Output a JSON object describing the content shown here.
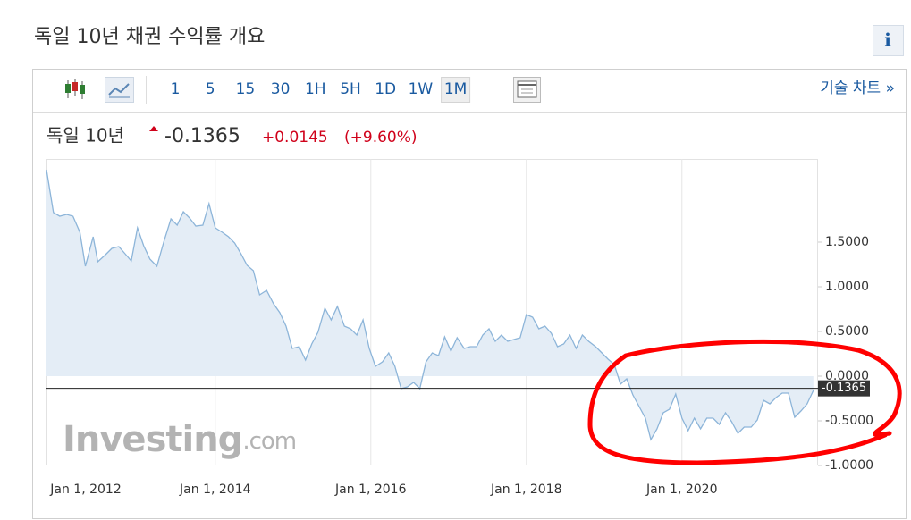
{
  "page": {
    "title": "독일 10년 채권 수익률 개요",
    "info_icon": "i",
    "toolbar": {
      "intervals": [
        "1",
        "5",
        "15",
        "30",
        "1H",
        "5H",
        "1D",
        "1W",
        "1M"
      ],
      "selected": "1M",
      "technical_link": "기술 차트 »"
    },
    "header": {
      "name": "독일 10년",
      "price": "-0.1365",
      "change": "+0.0145",
      "change_pct": "(+9.60%)"
    }
  },
  "chart_data": {
    "type": "area",
    "color": "#8db5d9",
    "fill": "#e4edf6",
    "grid": "x",
    "watermark": [
      "Investing",
      ".com"
    ],
    "last_value": -0.1365,
    "xlim": [
      2011.83,
      2021.75
    ],
    "xticks": [
      {
        "value": 2012,
        "label": "Jan 1, 2012"
      },
      {
        "value": 2014,
        "label": "Jan 1, 2014"
      },
      {
        "value": 2016,
        "label": "Jan 1, 2016"
      },
      {
        "value": 2018,
        "label": "Jan 1, 2018"
      },
      {
        "value": 2020,
        "label": "Jan 1, 2020"
      }
    ],
    "ylim": [
      -1,
      2.43
    ],
    "yticks": [
      {
        "value": -1,
        "label": "-1.0000"
      },
      {
        "value": -0.5,
        "label": "-0.5000"
      },
      {
        "value": 0,
        "label": "0.0000"
      },
      {
        "value": 0.5,
        "label": "0.5000"
      },
      {
        "value": 1,
        "label": "1.0000"
      },
      {
        "value": 1.5,
        "label": "1.5000"
      }
    ],
    "x": [
      2011.83,
      2011.92,
      2012.0,
      2012.09,
      2012.17,
      2012.26,
      2012.33,
      2012.43,
      2012.49,
      2012.59,
      2012.67,
      2012.76,
      2012.84,
      2012.92,
      2013.0,
      2013.08,
      2013.16,
      2013.25,
      2013.34,
      2013.43,
      2013.51,
      2013.59,
      2013.67,
      2013.75,
      2013.84,
      2013.92,
      2014.0,
      2014.09,
      2014.17,
      2014.25,
      2014.33,
      2014.41,
      2014.49,
      2014.57,
      2014.66,
      2014.75,
      2014.83,
      2014.91,
      2014.99,
      2015.08,
      2015.16,
      2015.24,
      2015.32,
      2015.41,
      2015.49,
      2015.57,
      2015.66,
      2015.74,
      2015.82,
      2015.9,
      2015.98,
      2016.06,
      2016.15,
      2016.23,
      2016.31,
      2016.39,
      2016.47,
      2016.55,
      2016.63,
      2016.71,
      2016.79,
      2016.87,
      2016.95,
      2017.03,
      2017.11,
      2017.2,
      2017.28,
      2017.36,
      2017.44,
      2017.52,
      2017.6,
      2017.68,
      2017.76,
      2017.84,
      2017.92,
      2018.0,
      2018.08,
      2018.16,
      2018.24,
      2018.32,
      2018.4,
      2018.48,
      2018.56,
      2018.64,
      2018.72,
      2018.8,
      2018.89,
      2018.97,
      2019.05,
      2019.13,
      2019.21,
      2019.29,
      2019.37,
      2019.45,
      2019.53,
      2019.6,
      2019.68,
      2019.76,
      2019.84,
      2019.92,
      2020.0,
      2020.08,
      2020.16,
      2020.24,
      2020.32,
      2020.4,
      2020.48,
      2020.56,
      2020.64,
      2020.72,
      2020.8,
      2020.89,
      2020.97,
      2021.05,
      2021.13,
      2021.21,
      2021.29,
      2021.37,
      2021.45,
      2021.53,
      2021.61,
      2021.69
    ],
    "values": [
      2.31,
      1.83,
      1.79,
      1.81,
      1.79,
      1.61,
      1.23,
      1.56,
      1.28,
      1.36,
      1.43,
      1.45,
      1.37,
      1.29,
      1.66,
      1.46,
      1.31,
      1.23,
      1.51,
      1.76,
      1.69,
      1.84,
      1.77,
      1.68,
      1.69,
      1.93,
      1.66,
      1.61,
      1.56,
      1.49,
      1.37,
      1.24,
      1.18,
      0.91,
      0.96,
      0.81,
      0.71,
      0.56,
      0.31,
      0.33,
      0.18,
      0.36,
      0.49,
      0.76,
      0.63,
      0.78,
      0.56,
      0.53,
      0.46,
      0.63,
      0.31,
      0.11,
      0.16,
      0.26,
      0.11,
      -0.14,
      -0.12,
      -0.07,
      -0.14,
      0.16,
      0.26,
      0.23,
      0.44,
      0.28,
      0.43,
      0.31,
      0.33,
      0.33,
      0.46,
      0.53,
      0.39,
      0.46,
      0.39,
      0.41,
      0.43,
      0.69,
      0.66,
      0.53,
      0.56,
      0.48,
      0.33,
      0.36,
      0.46,
      0.31,
      0.46,
      0.39,
      0.33,
      0.26,
      0.19,
      0.13,
      -0.09,
      -0.03,
      -0.21,
      -0.34,
      -0.47,
      -0.71,
      -0.59,
      -0.41,
      -0.37,
      -0.2,
      -0.47,
      -0.61,
      -0.47,
      -0.59,
      -0.47,
      -0.47,
      -0.54,
      -0.41,
      -0.51,
      -0.64,
      -0.57,
      -0.57,
      -0.49,
      -0.27,
      -0.31,
      -0.24,
      -0.19,
      -0.19,
      -0.46,
      -0.39,
      -0.31,
      -0.16
    ]
  }
}
